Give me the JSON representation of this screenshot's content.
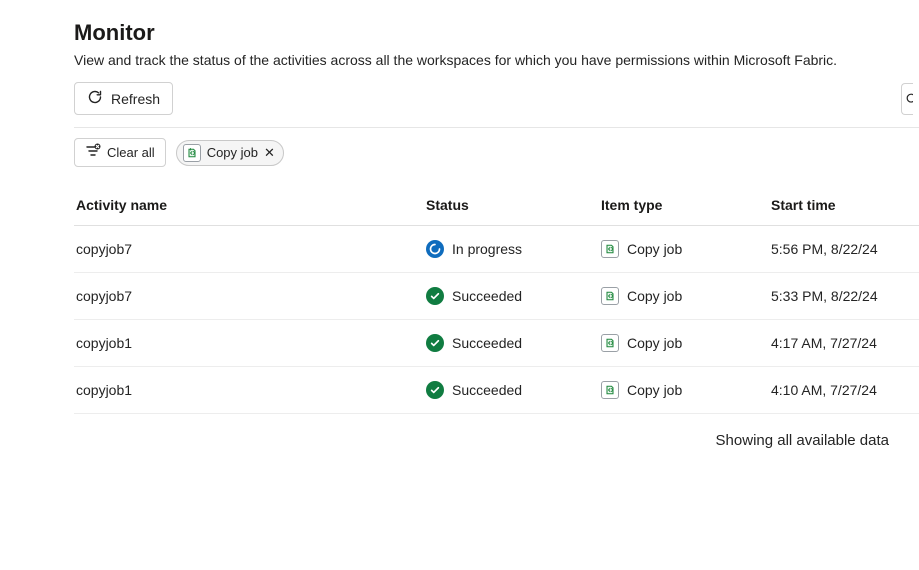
{
  "page": {
    "title": "Monitor",
    "subtitle": "View and track the status of the activities across all the workspaces for which you have permissions within Microsoft Fabric."
  },
  "toolbar": {
    "refresh_label": "Refresh"
  },
  "filters": {
    "clear_label": "Clear all",
    "chip": {
      "label": "Copy job",
      "icon": "copy-job-icon"
    }
  },
  "table": {
    "headers": {
      "activity": "Activity name",
      "status": "Status",
      "item_type": "Item type",
      "start_time": "Start time"
    },
    "rows": [
      {
        "activity": "copyjob7",
        "status": {
          "label": "In progress",
          "kind": "inprogress",
          "color": "#0f6cbd"
        },
        "item_type": {
          "label": "Copy job",
          "icon": "copy-job-icon"
        },
        "start_time": "5:56 PM, 8/22/24"
      },
      {
        "activity": "copyjob7",
        "status": {
          "label": "Succeeded",
          "kind": "succeeded",
          "color": "#107c41"
        },
        "item_type": {
          "label": "Copy job",
          "icon": "copy-job-icon"
        },
        "start_time": "5:33 PM, 8/22/24"
      },
      {
        "activity": "copyjob1",
        "status": {
          "label": "Succeeded",
          "kind": "succeeded",
          "color": "#107c41"
        },
        "item_type": {
          "label": "Copy job",
          "icon": "copy-job-icon"
        },
        "start_time": "4:17 AM, 7/27/24"
      },
      {
        "activity": "copyjob1",
        "status": {
          "label": "Succeeded",
          "kind": "succeeded",
          "color": "#107c41"
        },
        "item_type": {
          "label": "Copy job",
          "icon": "copy-job-icon"
        },
        "start_time": "4:10 AM, 7/27/24"
      }
    ]
  },
  "footer": {
    "note": "Showing all available data"
  },
  "colors": {
    "border": "#d1d1d1",
    "row_border": "#ededed",
    "text": "#242424",
    "inprogress": "#0f6cbd",
    "succeeded": "#107c41",
    "copyjob_green": "#1f883d"
  }
}
